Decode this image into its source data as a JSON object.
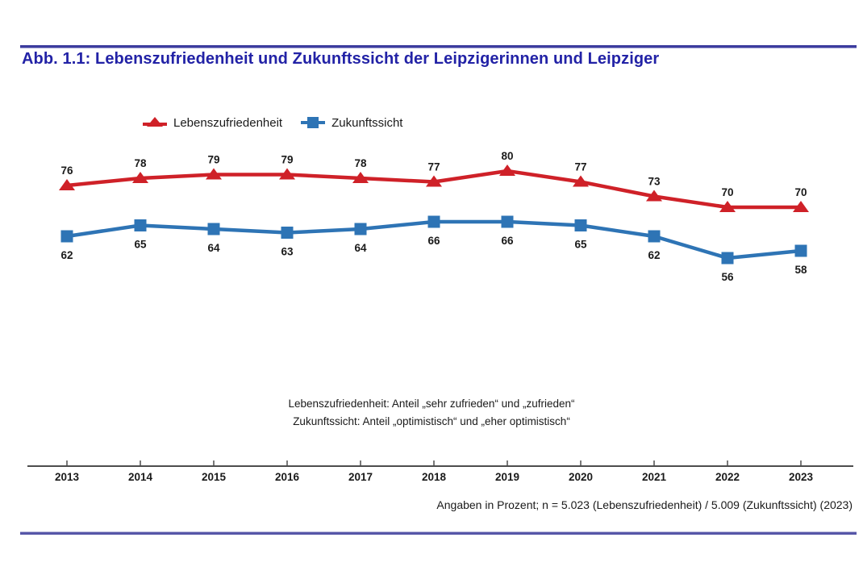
{
  "title": "Abb. 1.1: Lebenszufriedenheit und Zukunftssicht der Leipzigerinnen und Leipziger",
  "footnote": "Angaben in Prozent; n = 5.023 (Lebenszufriedenheit) / 5.009 (Zukunftssicht) (2023)",
  "colors": {
    "title_blue": "#2222a6",
    "rule_top": "#3c3c9e",
    "rule_bottom": "#5656a8",
    "axis": "#4d4d4d",
    "label_text": "#1a1a1a",
    "series_red": "#cf2128",
    "series_blue": "#2e74b5"
  },
  "chart_data": {
    "type": "line",
    "title": "Lebenszufriedenheit und Zukunftssicht der Leipzigerinnen und Leipziger",
    "xlabel": "",
    "ylabel": "",
    "unit": "Prozent",
    "ylim": [
      50,
      85
    ],
    "grid": false,
    "legend_position": "top-left",
    "categories": [
      "2013",
      "2014",
      "2015",
      "2016",
      "2017",
      "2018",
      "2019",
      "2020",
      "2021",
      "2022",
      "2023"
    ],
    "series": [
      {
        "id": "lebenszufriedenheit",
        "name": "Lebenszufriedenheit",
        "color": "#cf2128",
        "marker": "triangle",
        "label_position": "above",
        "values": [
          76,
          78,
          79,
          79,
          78,
          77,
          80,
          77,
          73,
          70,
          70
        ]
      },
      {
        "id": "zukunftssicht",
        "name": "Zukunftssicht",
        "color": "#2e74b5",
        "marker": "square",
        "label_position": "below",
        "values": [
          62,
          65,
          64,
          63,
          64,
          66,
          66,
          65,
          62,
          56,
          58
        ]
      }
    ],
    "annotations": [
      "Lebenszufriedenheit: Anteil „sehr zufrieden“ und „zufrieden“",
      "Zukunftssicht: Anteil „optimistisch“ und „eher optimistisch“"
    ]
  }
}
